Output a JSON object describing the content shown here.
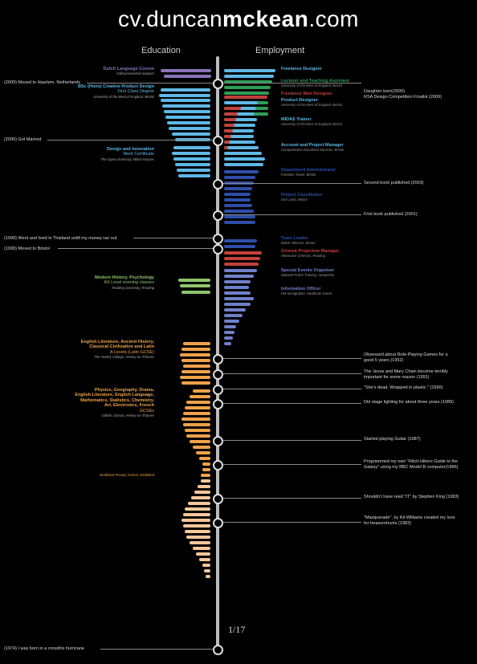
{
  "title": {
    "prefix": "cv.duncan",
    "bold": "mckean",
    "suffix": ".com"
  },
  "headers": {
    "education": "Education",
    "employment": "Employment"
  },
  "page_indicator": "1/17",
  "colors": {
    "purple": "#8a72b8",
    "blue": "#5fb8e6",
    "green": "#2e9e57",
    "red": "#c2413b",
    "navy": "#2f4ea8",
    "slate": "#7080c8",
    "lime": "#8fc56b",
    "orange": "#f0a24a",
    "peach": "#f7c79a"
  },
  "education": [
    {
      "title": "Dutch Language Course",
      "sub": [
        "Volksuniversiteit Haarlem"
      ],
      "color": "purple"
    },
    {
      "title": "BSc (Hons) Creative Product Design",
      "sub": [
        "First Class Degree",
        "University of the West of England, Bristol"
      ],
      "color": "blue"
    },
    {
      "title": "Design and Innovation",
      "sub": [
        "Merit Certificate",
        "The Open University, Milton Keynes"
      ],
      "color": "blue"
    },
    {
      "title": "Modern History, Psychology",
      "sub": [
        "AS Level evening classes",
        "Reading University, Reading"
      ],
      "color": "lime"
    },
    {
      "title": "English Literature, Ancient History, Classical Civilisation and Latin",
      "title_lines": [
        "English Literature, Ancient History,",
        "Classical Civilisation and Latin"
      ],
      "sub": [
        "A Levels (Latin GCSE)",
        "The Henley College, Henley-on-Thames"
      ],
      "color": "orange"
    },
    {
      "title": "Physics, Geography, Drama, English Literature, English Language, Mathematics, Statistics, Chemistry, Art, Electronics, French",
      "title_lines": [
        "Physics, Geography, Drama,",
        "English Literature, English Language,",
        "Mathematics, Statistics, Chemistry,",
        "Art, Electronics, French"
      ],
      "sub": [
        "GCSEs",
        "Gillott's School, Henley-on-Thames"
      ],
      "color": "orange"
    },
    {
      "title": "Nettlebed Primary School, Nettlebed",
      "sub": [],
      "color": "orange"
    }
  ],
  "employment": [
    {
      "title": "Freelance Designer",
      "sub": [],
      "color": "blue"
    },
    {
      "title": "Lecturer and Teaching Assistant",
      "sub": [
        "University of the West of England, Bristol"
      ],
      "color": "green"
    },
    {
      "title": "Freelance Web Designer",
      "sub": [],
      "color": "red"
    },
    {
      "title": "Product Designer",
      "sub": [
        "University of the West of England, Bristol"
      ],
      "color": "blue"
    },
    {
      "title": "MIDAS Trainer",
      "sub": [
        "University of the West of England, Bristol"
      ],
      "color": "blue"
    },
    {
      "title": "Account and Project Manager",
      "sub": [
        "Computerwise Document Services, Bristol"
      ],
      "color": "blue"
    },
    {
      "title": "Department Administrator",
      "sub": [
        "Freedom Travel, Bristol"
      ],
      "color": "navy"
    },
    {
      "title": "Project Coordinator",
      "sub": [
        "Ord Lumb, Bristol"
      ],
      "color": "navy"
    },
    {
      "title": "Team Leader",
      "sub": [
        "British Telecom, Bristol"
      ],
      "color": "navy"
    },
    {
      "title": "Cinema Projection Manager",
      "sub": [
        "Showcase Cinemas, Reading"
      ],
      "color": "red"
    },
    {
      "title": "Special Events Organiser",
      "sub": [
        "National Police Training, Hampshire"
      ],
      "color": "slate"
    },
    {
      "title": "Information Officer",
      "sub": [
        "HM Immigration, Heathrow Airport"
      ],
      "color": "slate"
    }
  ],
  "left_events": [
    "(2009) Moved to Haarlem, Netherlands",
    "(2006) Got Married",
    "(1999) Went and lived in Thailand untill my money ran out",
    "(1999) Moved to Bristol",
    "(1974) I was born in a crossfire hurricane"
  ],
  "right_events": [
    [
      "Daughter born(2009)",
      "RSA Design Competition Finalist (2009)"
    ],
    [
      "Second book published (2003)"
    ],
    [
      "First book published (2001)"
    ],
    [
      "Obsessed about Role-Playing Games for a",
      "good 5 years (1992)"
    ],
    [
      "The Jesus and Mary Chain become terribly",
      "important for some reason (1991)"
    ],
    [
      "\"She's dead. Wrapped in plastic.\" (1990)"
    ],
    [
      "Did stage lighting for about three years (1989)"
    ],
    [
      "Started playing Guitar (1987)"
    ],
    [
      "Programmed my own \"Hitch-Hikers Guide to the",
      "Galaxy\" using my BBC Model B computer(1986)"
    ],
    [
      "Shouldn't have read \"IT\" by Stephen King (1983)"
    ],
    [
      "\"Masquerade\", by Kit Williams created my love",
      "for treasurehunts (1983)"
    ]
  ]
}
